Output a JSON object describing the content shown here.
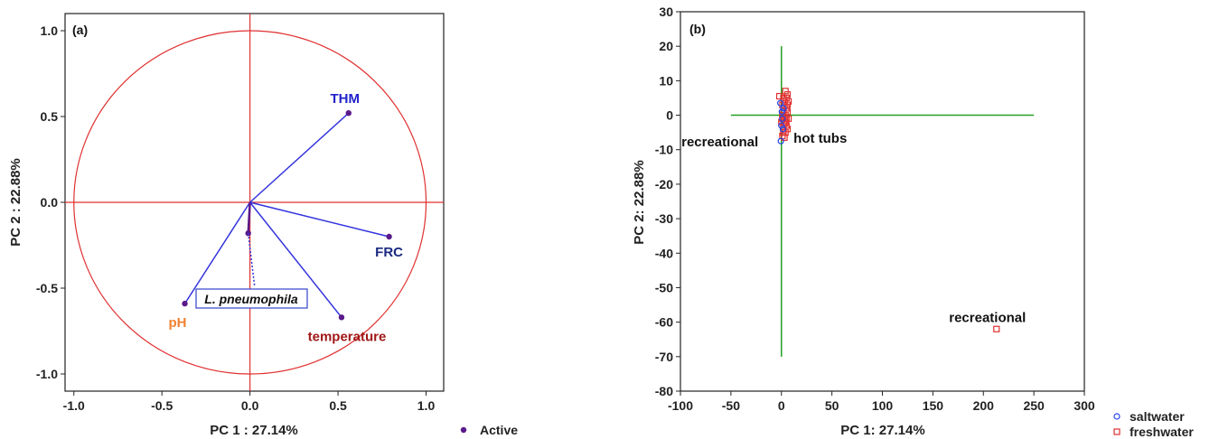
{
  "chart_data": [
    {
      "type": "scatter",
      "subtype": "pca-loading-circle",
      "panel_label": "(a)",
      "xlabel": "PC 1 : 27.14%",
      "ylabel": "PC 2 : 22.88%",
      "xlim": [
        -1.05,
        1.1
      ],
      "ylim": [
        -1.1,
        1.1
      ],
      "xticks": [
        -1.0,
        -0.5,
        0.0,
        0.5,
        1.0
      ],
      "xtick_labels": [
        "-1.0",
        "-0.5",
        "0.0",
        "0.5",
        "1.0"
      ],
      "yticks": [
        -1.0,
        -0.5,
        0.0,
        0.5,
        1.0
      ],
      "ytick_labels": [
        "-1.0",
        "-0.5",
        "0.0",
        "0.5",
        "1.0"
      ],
      "unit_circle_radius": 1.0,
      "grid": false,
      "colors": {
        "circle": "#e03030",
        "active_vector": "#3333dd",
        "point": "#5a1a8a",
        "supplementary": "#3333dd"
      },
      "variables": [
        {
          "name": "THM",
          "x": 0.56,
          "y": 0.52,
          "color": "#2222cc"
        },
        {
          "name": "FRC",
          "x": 0.79,
          "y": -0.2,
          "color": "#1a2a80"
        },
        {
          "name": "pH",
          "x": -0.37,
          "y": -0.59,
          "color": "#f08030"
        },
        {
          "name": "temperature",
          "x": 0.52,
          "y": -0.67,
          "color": "#a01818"
        }
      ],
      "supplementary": [
        {
          "name": "L. pneumophila",
          "x": -0.01,
          "y": -0.18
        }
      ],
      "legend": {
        "label": "Active",
        "position": "bottom-right"
      }
    },
    {
      "type": "scatter",
      "panel_label": "(b)",
      "xlabel": "PC 1: 27.14%",
      "ylabel": "PC 2: 22.88%",
      "xlim": [
        -100,
        300
      ],
      "ylim": [
        -80,
        30
      ],
      "xticks": [
        -100,
        -50,
        0,
        50,
        100,
        150,
        200,
        250,
        300
      ],
      "xtick_labels": [
        "-100",
        "-50",
        "0",
        "50",
        "100",
        "150",
        "200",
        "250",
        "300"
      ],
      "yticks": [
        -80,
        -70,
        -60,
        -50,
        -40,
        -30,
        -20,
        -10,
        0,
        10,
        20,
        30
      ],
      "ytick_labels": [
        "-80",
        "-70",
        "-60",
        "-50",
        "-40",
        "-30",
        "-20",
        "-10",
        "0",
        "10",
        "20",
        "30"
      ],
      "grid": false,
      "crosshair": {
        "h_y": 0,
        "h_from": -50,
        "h_to": 250,
        "v_x": 0,
        "v_from": -70,
        "v_to": 20,
        "color": "#22a022"
      },
      "series": [
        {
          "name": "saltwater",
          "marker": "circle",
          "color": "#2244ee",
          "points": [
            [
              -1,
              3.5
            ],
            [
              -0.5,
              -7.5
            ],
            [
              0.5,
              1
            ],
            [
              1,
              -1
            ],
            [
              0,
              -3
            ],
            [
              2,
              2
            ],
            [
              1.5,
              -4
            ]
          ]
        },
        {
          "name": "freshwater",
          "marker": "square",
          "color": "#e03030",
          "points": [
            [
              -2,
              5.5
            ],
            [
              4,
              7
            ],
            [
              6,
              6
            ],
            [
              7,
              4
            ],
            [
              3,
              3
            ],
            [
              5,
              2
            ],
            [
              2,
              1
            ],
            [
              4,
              0
            ],
            [
              1,
              -1
            ],
            [
              3,
              -2
            ],
            [
              5,
              -3
            ],
            [
              2,
              -4
            ],
            [
              4,
              -5
            ],
            [
              1,
              -6
            ],
            [
              3,
              -6.5
            ],
            [
              6,
              -4
            ],
            [
              7,
              -1
            ],
            [
              6,
              1
            ],
            [
              2,
              5
            ],
            [
              5,
              5
            ],
            [
              1,
              3
            ],
            [
              3,
              -1
            ],
            [
              0,
              -2
            ],
            [
              2,
              -3
            ],
            [
              4,
              -2
            ],
            [
              6,
              3
            ],
            [
              1,
              0
            ],
            [
              5,
              -1
            ],
            [
              2,
              -5
            ],
            [
              3,
              4
            ],
            [
              213,
              -62
            ]
          ]
        }
      ],
      "annotations": [
        {
          "text": "recreational",
          "x": -99,
          "y": -9
        },
        {
          "text": "hot tubs",
          "x": 12,
          "y": -8
        },
        {
          "text": "recreational",
          "x": 166,
          "y": -60
        }
      ],
      "legend": {
        "position": "bottom-right-outside",
        "entries": [
          "saltwater",
          "freshwater"
        ]
      }
    }
  ]
}
